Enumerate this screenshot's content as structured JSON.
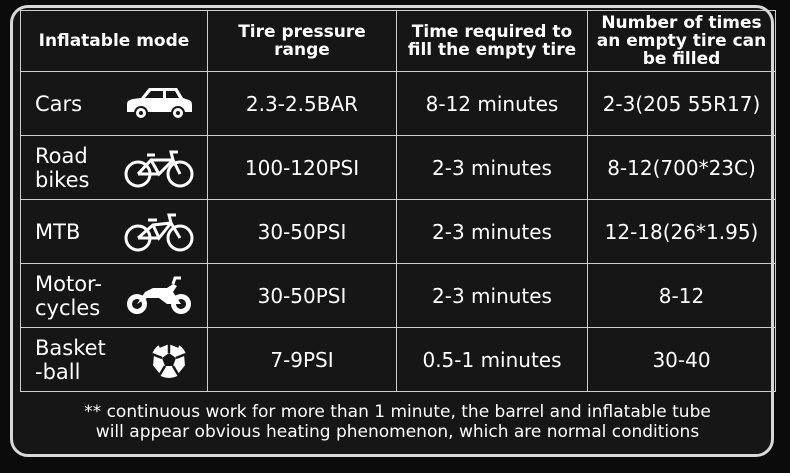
{
  "table": {
    "headers": [
      "Inflatable mode",
      "Tire pressure\nrange",
      "Time required to\nfill the empty tire",
      "Number of times\nan empty tire can\nbe filled"
    ],
    "rows": [
      {
        "mode": "Cars",
        "icon": "car-icon",
        "pressure": "2.3-2.5BAR",
        "time": "8-12 minutes",
        "times": "2-3(205 55R17)"
      },
      {
        "mode": "Road\nbikes",
        "icon": "road-bike-icon",
        "pressure": "100-120PSI",
        "time": "2-3 minutes",
        "times": "8-12(700*23C)"
      },
      {
        "mode": "MTB",
        "icon": "mountain-bike-icon",
        "pressure": "30-50PSI",
        "time": "2-3 minutes",
        "times": "12-18(26*1.95)"
      },
      {
        "mode": "Motor-\ncycles",
        "icon": "motorcycle-icon",
        "pressure": "30-50PSI",
        "time": "2-3 minutes",
        "times": "8-12"
      },
      {
        "mode": "Basket\n-ball",
        "icon": "ball-icon",
        "pressure": "7-9PSI",
        "time": "0.5-1 minutes",
        "times": "30-40"
      }
    ]
  },
  "note": {
    "line1": "** continuous work for more than 1 minute, the barrel and inflatable tube",
    "line2": "will appear obvious heating phenomenon, which are normal conditions"
  },
  "colors": {
    "background": "#161616",
    "border": "#cfcfcf",
    "text": "#ffffff"
  }
}
